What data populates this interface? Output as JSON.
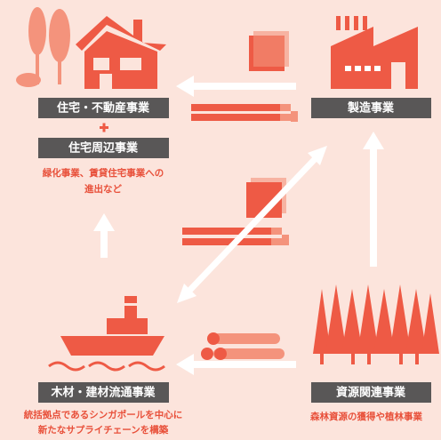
{
  "nodes": [
    {
      "label": "住宅・不動産事業"
    },
    {
      "label": "住宅周辺事業",
      "note": [
        "緑化事業、賃貸住宅事業への",
        "進出など"
      ]
    },
    {
      "label": "製造事業"
    },
    {
      "label": "木材・建材流通事業",
      "note": [
        "統括拠点であるシンガポールを中心に",
        "新たなサプライチェーンを構築"
      ]
    },
    {
      "label": "資源関連事業",
      "note": [
        "森林資源の獲得や植林事業"
      ]
    }
  ]
}
